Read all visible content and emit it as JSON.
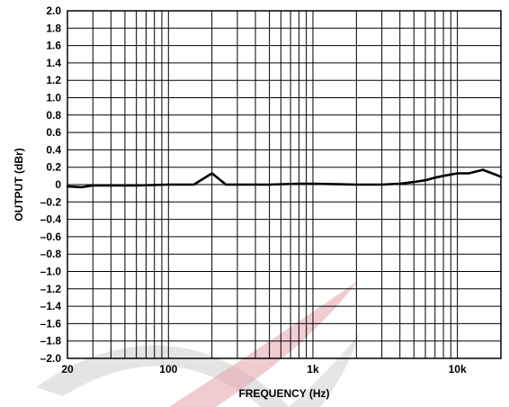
{
  "chart_data": {
    "type": "line",
    "title": "",
    "xlabel": "FREQUENCY (Hz)",
    "ylabel": "OUTPUT (dBr)",
    "x_scale": "log",
    "xlim": [
      20,
      20000
    ],
    "ylim": [
      -2.0,
      2.0
    ],
    "grid": true,
    "legend": "none",
    "x_tick_labels": [
      {
        "value": 20,
        "label": "20"
      },
      {
        "value": 100,
        "label": "100"
      },
      {
        "value": 1000,
        "label": "1k"
      },
      {
        "value": 10000,
        "label": "10k"
      }
    ],
    "y_tick_labels": [
      {
        "value": 2.0,
        "label": "2.0"
      },
      {
        "value": 1.8,
        "label": "1.8"
      },
      {
        "value": 1.6,
        "label": "1.6"
      },
      {
        "value": 1.4,
        "label": "1.4"
      },
      {
        "value": 1.2,
        "label": "1.2"
      },
      {
        "value": 1.0,
        "label": "1.0"
      },
      {
        "value": 0.8,
        "label": "0.8"
      },
      {
        "value": 0.6,
        "label": "0.6"
      },
      {
        "value": 0.4,
        "label": "0.4"
      },
      {
        "value": 0.2,
        "label": "0.2"
      },
      {
        "value": 0,
        "label": "0"
      },
      {
        "value": -0.2,
        "label": "–0.2"
      },
      {
        "value": -0.4,
        "label": "–0.4"
      },
      {
        "value": -0.6,
        "label": "–0.6"
      },
      {
        "value": -0.8,
        "label": "–0.8"
      },
      {
        "value": -1.0,
        "label": "–1.0"
      },
      {
        "value": -1.2,
        "label": "–1.2"
      },
      {
        "value": -1.4,
        "label": "–1.4"
      },
      {
        "value": -1.6,
        "label": "–1.6"
      },
      {
        "value": -1.8,
        "label": "–1.8"
      },
      {
        "value": -2.0,
        "label": "–2.0"
      }
    ],
    "series": [
      {
        "x": [
          20,
          25,
          30,
          40,
          60,
          100,
          150,
          200,
          250,
          300,
          500,
          800,
          1000,
          2000,
          3000,
          4000,
          5000,
          6000,
          7000,
          8000,
          10000,
          12000,
          15000,
          18000,
          20000
        ],
        "y": [
          -0.02,
          -0.03,
          -0.01,
          -0.01,
          -0.01,
          0.0,
          0.0,
          0.13,
          0.0,
          0.0,
          0.0,
          0.01,
          0.01,
          0.0,
          0.0,
          0.01,
          0.03,
          0.05,
          0.08,
          0.1,
          0.13,
          0.13,
          0.17,
          0.12,
          0.09
        ]
      }
    ],
    "colors": {
      "line": "#000000",
      "grid": "#000000",
      "background": "#ffffff"
    }
  }
}
